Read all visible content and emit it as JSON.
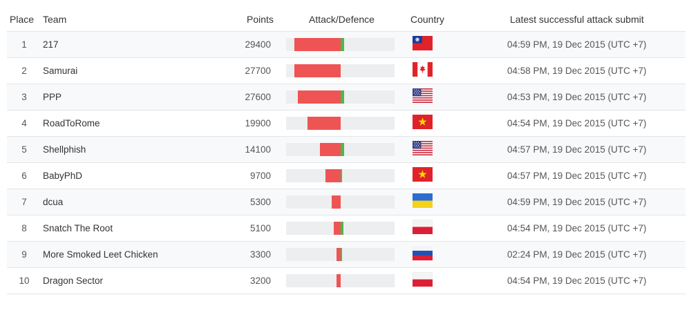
{
  "columns": {
    "place": "Place",
    "team": "Team",
    "points": "Points",
    "attack_defence": "Attack/Defence",
    "country": "Country",
    "latest": "Latest successful attack submit"
  },
  "colors": {
    "attack": "#ef5454",
    "defence": "#4cb84c",
    "bar_track": "#eceef0"
  },
  "rows": [
    {
      "place": "1",
      "team": "217",
      "points": "29400",
      "attack": 0.85,
      "defence": 0.06,
      "country": "taiwan-flag-icon",
      "latest": "04:59 PM, 19 Dec 2015 (UTC +7)"
    },
    {
      "place": "2",
      "team": "Samurai",
      "points": "27700",
      "attack": 0.85,
      "defence": 0.0,
      "country": "canada-flag-icon",
      "latest": "04:58 PM, 19 Dec 2015 (UTC +7)"
    },
    {
      "place": "3",
      "team": "PPP",
      "points": "27600",
      "attack": 0.79,
      "defence": 0.06,
      "country": "usa-flag-icon",
      "latest": "04:53 PM, 19 Dec 2015 (UTC +7)"
    },
    {
      "place": "4",
      "team": "RoadToRome",
      "points": "19900",
      "attack": 0.61,
      "defence": 0.0,
      "country": "vietnam-flag-icon",
      "latest": "04:54 PM, 19 Dec 2015 (UTC +7)"
    },
    {
      "place": "5",
      "team": "Shellphish",
      "points": "14100",
      "attack": 0.38,
      "defence": 0.06,
      "country": "usa-flag-icon",
      "latest": "04:57 PM, 19 Dec 2015 (UTC +7)"
    },
    {
      "place": "6",
      "team": "BabyPhD",
      "points": "9700",
      "attack": 0.28,
      "defence": 0.02,
      "country": "vietnam-flag-icon",
      "latest": "04:57 PM, 19 Dec 2015 (UTC +7)"
    },
    {
      "place": "7",
      "team": "dcua",
      "points": "5300",
      "attack": 0.17,
      "defence": 0.0,
      "country": "ukraine-flag-icon",
      "latest": "04:59 PM, 19 Dec 2015 (UTC +7)"
    },
    {
      "place": "8",
      "team": "Snatch The Root",
      "points": "5100",
      "attack": 0.13,
      "defence": 0.05,
      "country": "poland-flag-icon",
      "latest": "04:54 PM, 19 Dec 2015 (UTC +7)"
    },
    {
      "place": "9",
      "team": "More Smoked Leet Chicken",
      "points": "3300",
      "attack": 0.08,
      "defence": 0.02,
      "country": "russia-flag-icon",
      "latest": "02:24 PM, 19 Dec 2015 (UTC +7)"
    },
    {
      "place": "10",
      "team": "Dragon Sector",
      "points": "3200",
      "attack": 0.08,
      "defence": 0.0,
      "country": "poland-flag-icon",
      "latest": "04:54 PM, 19 Dec 2015 (UTC +7)"
    }
  ]
}
